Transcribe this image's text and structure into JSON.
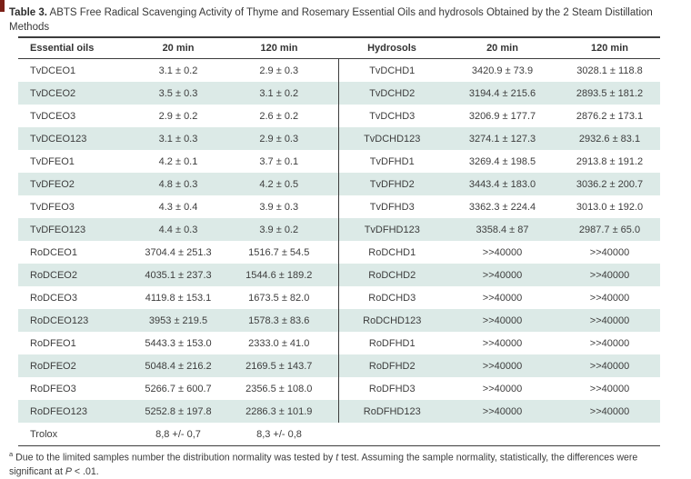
{
  "colors": {
    "row_stripe": "#dceae7",
    "rule": "#3c3c3c",
    "corner_mark": "#7b2017"
  },
  "title": {
    "label": "Table 3.",
    "text": " ABTS Free Radical Scavenging Activity of Thyme and Rosemary Essential Oils and hydrosols Obtained by the 2 Steam Distillation Methods"
  },
  "table": {
    "headers": [
      "Essential oils",
      "20 min",
      "120 min",
      "Hydrosols",
      "20 min",
      "120 min"
    ],
    "rows": [
      [
        "TvDCEO1",
        "3.1 ± 0.2",
        "2.9 ± 0.3",
        "TvDCHD1",
        "3420.9 ± 73.9",
        "3028.1 ± 118.8"
      ],
      [
        "TvDCEO2",
        "3.5 ± 0.3",
        "3.1 ± 0.2",
        "TvDCHD2",
        "3194.4 ± 215.6",
        "2893.5 ± 181.2"
      ],
      [
        "TvDCEO3",
        "2.9 ± 0.2",
        "2.6 ± 0.2",
        "TvDCHD3",
        "3206.9 ± 177.7",
        "2876.2 ± 173.1"
      ],
      [
        "TvDCEO123",
        "3.1 ± 0.3",
        "2.9 ± 0.3",
        "TvDCHD123",
        "3274.1 ± 127.3",
        "2932.6 ± 83.1"
      ],
      [
        "TvDFEO1",
        "4.2 ± 0.1",
        "3.7 ± 0.1",
        "TvDFHD1",
        "3269.4 ± 198.5",
        "2913.8 ± 191.2"
      ],
      [
        "TvDFEO2",
        "4.8 ± 0.3",
        "4.2 ± 0.5",
        "TvDFHD2",
        "3443.4 ± 183.0",
        "3036.2 ± 200.7"
      ],
      [
        "TvDFEO3",
        "4.3 ± 0.4",
        "3.9 ± 0.3",
        "TvDFHD3",
        "3362.3 ± 224.4",
        "3013.0 ± 192.0"
      ],
      [
        "TvDFEO123",
        "4.4 ± 0.3",
        "3.9 ± 0.2",
        "TvDFHD123",
        "3358.4 ± 87",
        "2987.7 ± 65.0"
      ],
      [
        "RoDCEO1",
        "3704.4 ± 251.3",
        "1516.7 ± 54.5",
        "RoDCHD1",
        ">>40000",
        ">>40000"
      ],
      [
        "RoDCEO2",
        "4035.1 ± 237.3",
        "1544.6 ± 189.2",
        "RoDCHD2",
        ">>40000",
        ">>40000"
      ],
      [
        "RoDCEO3",
        "4119.8 ± 153.1",
        "1673.5 ± 82.0",
        "RoDCHD3",
        ">>40000",
        ">>40000"
      ],
      [
        "RoDCEO123",
        "3953 ± 219.5",
        "1578.3 ± 83.6",
        "RoDCHD123",
        ">>40000",
        ">>40000"
      ],
      [
        "RoDFEO1",
        "5443.3 ± 153.0",
        "2333.0 ± 41.0",
        "RoDFHD1",
        ">>40000",
        ">>40000"
      ],
      [
        "RoDFEO2",
        "5048.4 ± 216.2",
        "2169.5 ± 143.7",
        "RoDFHD2",
        ">>40000",
        ">>40000"
      ],
      [
        "RoDFEO3",
        "5266.7 ± 600.7",
        "2356.5 ± 108.0",
        "RoDFHD3",
        ">>40000",
        ">>40000"
      ],
      [
        "RoDFEO123",
        "5252.8 ± 197.8",
        "2286.3 ± 101.9",
        "RoDFHD123",
        ">>40000",
        ">>40000"
      ],
      [
        "Trolox",
        "8,8 +/- 0,7",
        "8,3 +/- 0,8",
        "",
        "",
        ""
      ]
    ]
  },
  "footnote": {
    "marker": "a",
    "part1": " Due to the limited samples number the distribution normality was tested by ",
    "italic1": "t",
    "part2": " test. Assuming the sample normality, statistically, the differences were significant at ",
    "italic2": "P",
    "part3": " < .01."
  }
}
